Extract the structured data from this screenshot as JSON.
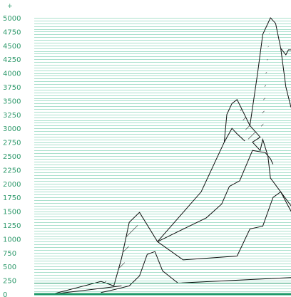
{
  "chart_data": {
    "type": "line",
    "title": "",
    "xlabel": "",
    "ylabel": "",
    "ylim": [
      0,
      5000
    ],
    "y_tick_step": 250,
    "y_ticks": [
      "0",
      "250",
      "500",
      "750",
      "1000",
      "1250",
      "1500",
      "1750",
      "2000",
      "2250",
      "2500",
      "2750",
      "3000",
      "3250",
      "3500",
      "3750",
      "4000",
      "4250",
      "4500",
      "4750",
      "5000"
    ],
    "axis_top_marker": "+",
    "grid": true,
    "legend": "none",
    "colors": {
      "axis": "#1f9a6a",
      "grid": "#a9e0cc",
      "tick_text": "#2f9a6c",
      "line": "#111111",
      "reference": "#1f9a6a"
    },
    "reference_lines": [
      0,
      200
    ],
    "x_domain": [
      0,
      100
    ],
    "series": [
      {
        "values": [
          [
            7,
            0
          ],
          [
            26,
            230
          ],
          [
            31,
            150
          ],
          [
            34,
            650
          ],
          [
            37,
            1300
          ],
          [
            41,
            1480
          ],
          [
            48,
            950
          ],
          [
            65,
            1850
          ],
          [
            74,
            2750
          ],
          [
            77,
            3000
          ],
          [
            79,
            2900
          ],
          [
            82,
            2770
          ]
        ]
      },
      {
        "values": [
          [
            48,
            950
          ],
          [
            67,
            1380
          ],
          [
            73,
            1630
          ],
          [
            76,
            1950
          ],
          [
            80,
            2050
          ],
          [
            85,
            2600
          ],
          [
            90,
            2560
          ],
          [
            92,
            2450
          ],
          [
            93,
            2350
          ]
        ]
      },
      {
        "values": [
          [
            48,
            950
          ],
          [
            58,
            620
          ],
          [
            79,
            690
          ],
          [
            84,
            1180
          ],
          [
            89,
            1230
          ],
          [
            93,
            1750
          ],
          [
            96,
            1850
          ],
          [
            100,
            1500
          ]
        ]
      },
      {
        "values": [
          [
            26,
            30
          ],
          [
            31,
            80
          ],
          [
            37,
            150
          ],
          [
            41,
            330
          ],
          [
            44,
            720
          ],
          [
            47,
            770
          ],
          [
            50,
            420
          ],
          [
            56,
            200
          ],
          [
            100,
            300
          ]
        ]
      },
      {
        "values": [
          [
            7,
            0
          ],
          [
            34,
            150
          ]
        ]
      },
      {
        "values": [
          [
            74,
            2750
          ],
          [
            75,
            3250
          ],
          [
            77,
            3450
          ],
          [
            79,
            3520
          ],
          [
            84,
            3050
          ],
          [
            88,
            2840
          ],
          [
            85,
            2750
          ],
          [
            88,
            2600
          ],
          [
            89,
            2800
          ],
          [
            91,
            2500
          ],
          [
            92,
            2100
          ],
          [
            100,
            1600
          ]
        ]
      },
      {
        "values": [
          [
            84,
            3050
          ],
          [
            87,
            4000
          ],
          [
            89,
            4700
          ],
          [
            92,
            5000
          ],
          [
            94,
            4900
          ],
          [
            96,
            4450
          ],
          [
            98,
            3750
          ],
          [
            100,
            3380
          ]
        ]
      },
      {
        "values": [
          [
            96,
            4450
          ],
          [
            98,
            4330
          ],
          [
            99,
            4420
          ],
          [
            100,
            4420
          ]
        ]
      }
    ],
    "hatched_areas": [
      {
        "upper": [
          [
            26,
            230
          ],
          [
            31,
            150
          ],
          [
            34,
            650
          ],
          [
            37,
            1300
          ],
          [
            41,
            1480
          ]
        ],
        "lower": [
          [
            26,
            230
          ],
          [
            30,
            250
          ],
          [
            34,
            350
          ],
          [
            37,
            900
          ],
          [
            40,
            1150
          ],
          [
            41,
            1480
          ]
        ]
      },
      {
        "upper": [
          [
            79,
            3520
          ],
          [
            84,
            3050
          ],
          [
            88,
            2840
          ],
          [
            92,
            5000
          ],
          [
            94,
            4900
          ]
        ],
        "lower": [
          [
            79,
            3520
          ],
          [
            84,
            2700
          ],
          [
            89,
            2900
          ],
          [
            92,
            5000
          ],
          [
            94,
            4900
          ]
        ]
      }
    ]
  }
}
